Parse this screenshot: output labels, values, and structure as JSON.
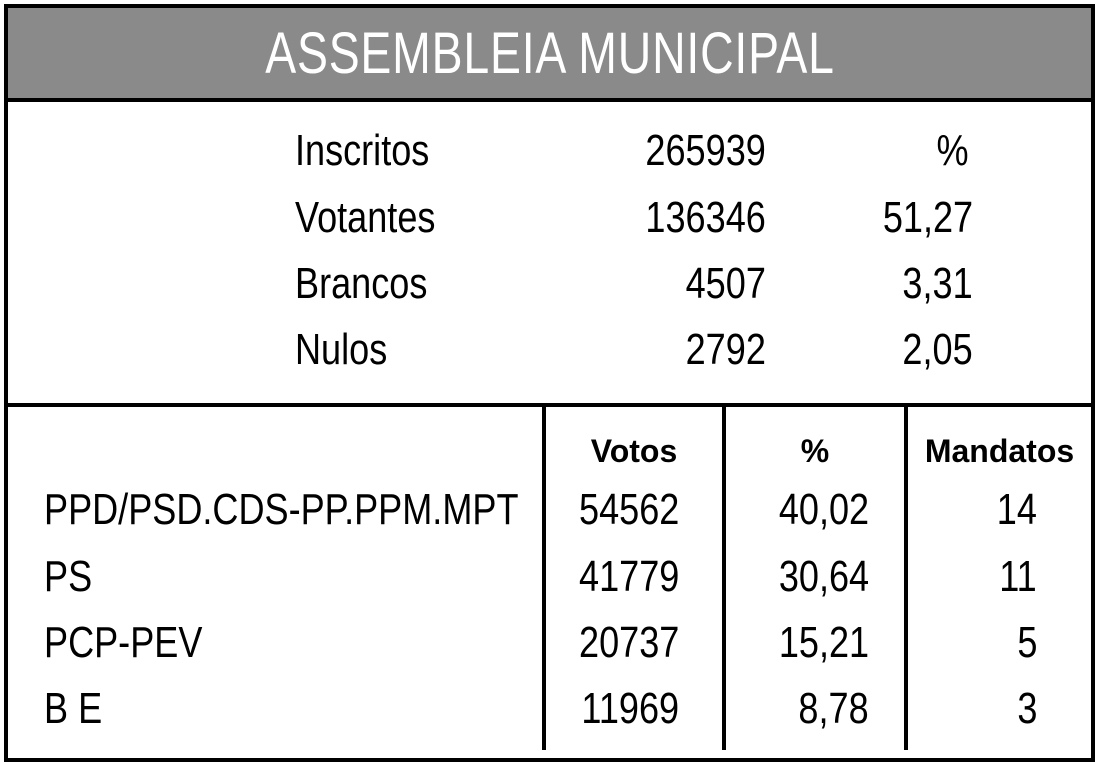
{
  "header": {
    "title": "ASSEMBLEIA MUNICIPAL"
  },
  "summary": {
    "pct_header": "%",
    "rows": [
      {
        "label": "Inscritos",
        "value": "265939",
        "pct": ""
      },
      {
        "label": "Votantes",
        "value": "136346",
        "pct": "51,27"
      },
      {
        "label": "Brancos",
        "value": "4507",
        "pct": "3,31"
      },
      {
        "label": "Nulos",
        "value": "2792",
        "pct": "2,05"
      }
    ]
  },
  "results": {
    "columns": {
      "votos": "Votos",
      "pct": "%",
      "mandatos": "Mandatos"
    },
    "rows": [
      {
        "party": "PPD/PSD.CDS-PP.PPM.MPT",
        "votos": "54562",
        "pct": "40,02",
        "mandatos": "14"
      },
      {
        "party": "PS",
        "votos": "41779",
        "pct": "30,64",
        "mandatos": "11"
      },
      {
        "party": "PCP-PEV",
        "votos": "20737",
        "pct": "15,21",
        "mandatos": "5"
      },
      {
        "party": "B E",
        "votos": "11969",
        "pct": "8,78",
        "mandatos": "3"
      }
    ]
  }
}
